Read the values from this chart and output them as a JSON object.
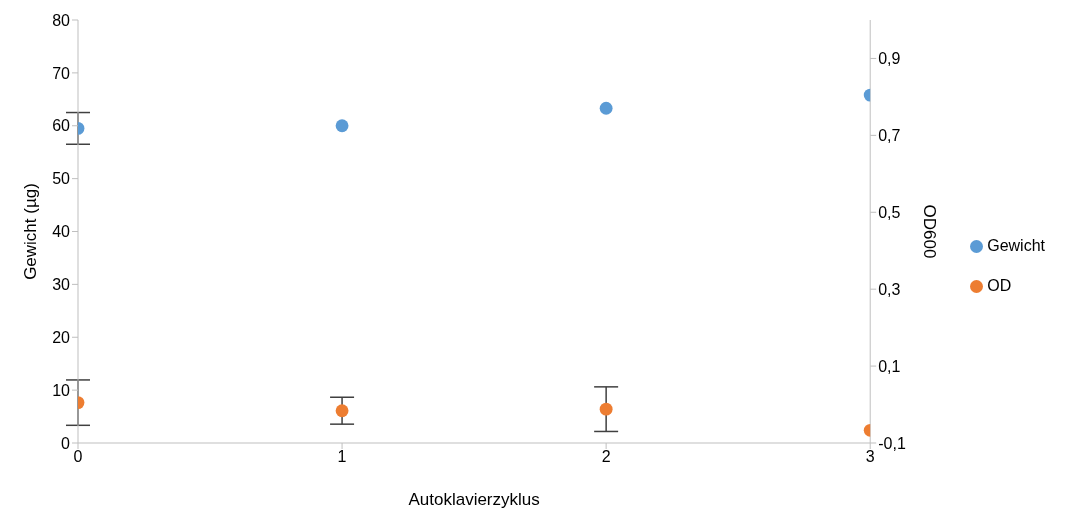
{
  "chart_data": {
    "type": "scatter",
    "xlabel": "Autoklavierzyklus",
    "ylabel": "Gewicht (µg)",
    "y2label": "OD600",
    "x": [
      0,
      1,
      2,
      3
    ],
    "series": [
      {
        "name": "Gewicht",
        "color": "#5b9bd5",
        "values": [
          59.5,
          60.0,
          63.3,
          65.8
        ],
        "errors": [
          3,
          null,
          null,
          null
        ]
      },
      {
        "name": "OD",
        "color": "#ed7d31",
        "axis": "y2",
        "values": [
          0.005,
          -0.016,
          -0.012,
          -0.067
        ],
        "errors": [
          0.059,
          0.035,
          0.058,
          null
        ]
      }
    ],
    "xlim": [
      0,
      3
    ],
    "xticks": [
      0,
      1,
      2,
      3
    ],
    "ylim": [
      0,
      80
    ],
    "yticks": [
      0,
      10,
      20,
      30,
      40,
      50,
      60,
      70,
      80
    ],
    "y2lim": [
      -0.1,
      1.0
    ],
    "y2ticks": [
      {
        "value": -0.1,
        "label": "-0,1"
      },
      {
        "value": 0.1,
        "label": "0,1"
      },
      {
        "value": 0.3,
        "label": "0,3"
      },
      {
        "value": 0.5,
        "label": "0,5"
      },
      {
        "value": 0.7,
        "label": "0,7"
      },
      {
        "value": 0.9,
        "label": "0,9"
      }
    ],
    "grid": false,
    "legend": "right",
    "marker": "circle"
  }
}
